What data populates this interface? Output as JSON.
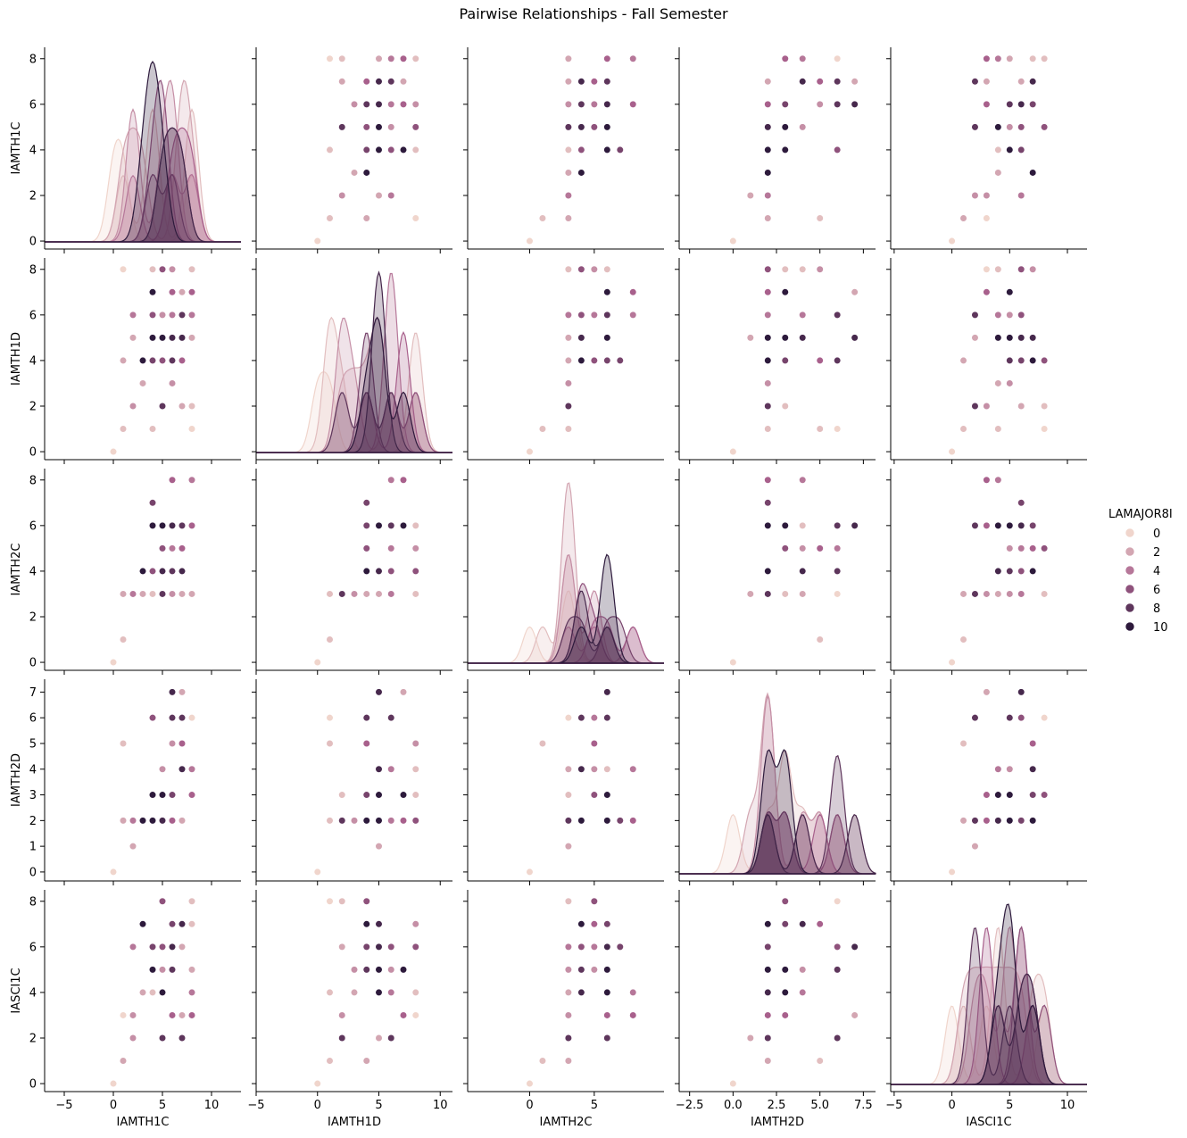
{
  "figure": {
    "title": "Pairwise Relationships - Fall Semester"
  },
  "chart_data": {
    "type": "scatter",
    "subtype": "pairplot",
    "title": "Pairwise Relationships - Fall Semester",
    "variables": [
      "IAMTH1C",
      "IAMTH1D",
      "IAMTH2C",
      "IAMTH2D",
      "IASCI1C"
    ],
    "hue": {
      "name": "LAMAJOR8I",
      "legend_values": [
        0,
        2,
        4,
        6,
        8,
        10
      ],
      "legend_placement": "right",
      "color_min": "#f0d5cc",
      "color_max": "#2d1a3c"
    },
    "diagonal": "kde",
    "grid": false,
    "axes": {
      "IAMTH1C": {
        "lim": [
          -7,
          13
        ],
        "ticks": [
          -5,
          0,
          5,
          10
        ],
        "tick_labels": [
          "−5",
          "0",
          "5",
          "10"
        ],
        "kde_ylim": [
          -0.35,
          10.2
        ]
      },
      "IAMTH1D": {
        "lim": [
          -5,
          11
        ],
        "ticks": [
          -5,
          0,
          5,
          10
        ],
        "tick_labels": [
          "−5",
          "0",
          "5",
          "10"
        ],
        "row_lim": [
          -0.35,
          8.5
        ],
        "row_ticks": [
          0,
          2,
          4,
          6,
          8
        ]
      },
      "IAMTH2C": {
        "lim": [
          -4.8,
          10.4
        ],
        "ticks": [
          0,
          5
        ],
        "tick_labels": [
          "0",
          "5"
        ],
        "row_lim": [
          -0.35,
          8.5
        ],
        "row_ticks": [
          0,
          2,
          4,
          6,
          8
        ]
      },
      "IAMTH2D": {
        "lim": [
          -3.1,
          8.2
        ],
        "ticks": [
          -2.5,
          0,
          2.5,
          5,
          7.5
        ],
        "tick_labels": [
          "−2.5",
          "0.0",
          "2.5",
          "5.0",
          "7.5"
        ],
        "row_lim": [
          -0.35,
          7.5
        ],
        "row_ticks": [
          0,
          1,
          2,
          3,
          4,
          5,
          6,
          7
        ]
      },
      "IASCI1C": {
        "lim": [
          -5.3,
          11.7
        ],
        "ticks": [
          -5,
          0,
          5,
          10
        ],
        "tick_labels": [
          "−5",
          "0",
          "5",
          "10"
        ],
        "row_lim": [
          -0.35,
          8.5
        ],
        "row_ticks": [
          0,
          2,
          4,
          6,
          8
        ]
      },
      "IAMTH1C_row": {
        "row_lim": [
          -0.35,
          8.5
        ],
        "row_ticks": [
          0,
          2,
          4,
          6,
          8
        ]
      }
    },
    "points": [
      [
        0,
        0,
        0,
        0,
        0,
        0
      ],
      [
        1,
        1,
        1,
        5,
        1,
        1
      ],
      [
        1,
        4,
        3,
        2,
        1,
        2
      ],
      [
        2,
        2,
        3,
        2,
        2,
        3
      ],
      [
        2,
        2,
        3,
        2,
        3,
        3
      ],
      [
        2,
        5,
        3,
        1,
        2,
        2
      ],
      [
        3,
        3,
        3,
        2,
        4,
        2
      ],
      [
        2,
        6,
        3,
        2,
        6,
        4
      ],
      [
        1,
        8,
        3,
        2,
        3,
        0
      ],
      [
        4,
        1,
        3,
        2,
        4,
        1
      ],
      [
        4,
        4,
        7,
        2,
        6,
        7
      ],
      [
        5,
        2,
        3,
        2,
        2,
        8
      ],
      [
        4,
        8,
        3,
        3,
        4,
        1
      ],
      [
        5,
        6,
        5,
        4,
        5,
        3
      ],
      [
        6,
        5,
        6,
        7,
        6,
        9
      ],
      [
        7,
        4,
        5,
        5,
        7,
        5
      ],
      [
        4,
        7,
        6,
        3,
        5,
        10
      ],
      [
        5,
        8,
        4,
        2,
        6,
        6
      ],
      [
        6,
        6,
        5,
        6,
        6,
        4
      ],
      [
        7,
        7,
        6,
        7,
        3,
        2
      ],
      [
        6,
        4,
        6,
        3,
        7,
        7
      ],
      [
        8,
        6,
        8,
        4,
        4,
        4
      ],
      [
        8,
        8,
        6,
        4,
        7,
        1
      ],
      [
        5,
        5,
        4,
        2,
        4,
        9
      ],
      [
        6,
        3,
        3,
        2,
        5,
        3
      ],
      [
        7,
        2,
        3,
        2,
        6,
        2
      ],
      [
        8,
        1,
        3,
        6,
        8,
        0
      ],
      [
        4,
        5,
        6,
        2,
        5,
        10
      ],
      [
        3,
        4,
        4,
        2,
        7,
        10
      ],
      [
        6,
        7,
        8,
        2,
        3,
        5
      ],
      [
        5,
        4,
        5,
        3,
        8,
        6
      ],
      [
        7,
        6,
        6,
        6,
        2,
        8
      ],
      [
        8,
        5,
        3,
        4,
        5,
        2
      ],
      [
        8,
        7,
        6,
        3,
        3,
        5
      ],
      [
        5,
        5,
        6,
        3,
        4,
        10
      ],
      [
        6,
        8,
        5,
        5,
        7,
        3
      ],
      [
        7,
        5,
        4,
        4,
        7,
        9
      ],
      [
        8,
        2,
        3,
        3,
        8,
        1
      ],
      [
        4,
        6,
        4,
        6,
        6,
        6
      ],
      [
        6,
        4,
        4,
        6,
        5,
        8
      ]
    ]
  },
  "axis_labels": {
    "x": [
      "IAMTH1C",
      "IAMTH1D",
      "IAMTH2C",
      "IAMTH2D",
      "IASCI1C"
    ],
    "y": [
      "IAMTH1C",
      "IAMTH1D",
      "IAMTH2C",
      "IAMTH2D",
      "IASCI1C"
    ]
  },
  "legend": {
    "title": "LAMAJOR8I",
    "labels": [
      "0",
      "2",
      "4",
      "6",
      "8",
      "10"
    ]
  }
}
